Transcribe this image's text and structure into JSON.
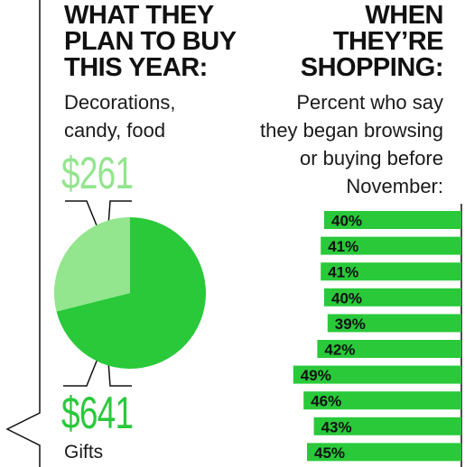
{
  "colors": {
    "accent_green": "#29c93a",
    "light_green": "#93e58e",
    "dark_text": "#111111"
  },
  "left_panel": {
    "heading_lines": [
      "WHAT THEY",
      "PLAN TO BUY",
      "THIS YEAR:"
    ],
    "sub_lines": [
      "Decorations,",
      "candy, food"
    ],
    "decorations_amount": "$261",
    "gifts_amount": "$641",
    "gifts_label": "Gifts"
  },
  "right_panel": {
    "heading_lines": [
      "WHEN",
      "THEY’RE",
      "SHOPPING:"
    ],
    "sub_lines": [
      "Percent who say",
      "they began browsing",
      "or buying before",
      "November:"
    ]
  },
  "chart_data": [
    {
      "type": "pie",
      "slices": [
        {
          "label": "Decorations, candy, food",
          "value": 261,
          "display": "$261",
          "color": "#93e58e"
        },
        {
          "label": "Gifts",
          "value": 641,
          "display": "$641",
          "color": "#29c93a"
        }
      ]
    },
    {
      "type": "bar",
      "orientation": "horizontal",
      "values": [
        40,
        41,
        41,
        40,
        39,
        42,
        49,
        46,
        43,
        45
      ],
      "labels": [
        "40%",
        "41%",
        "41%",
        "40%",
        "39%",
        "42%",
        "49%",
        "46%",
        "43%",
        "45%"
      ],
      "xlim": [
        0,
        50
      ],
      "color": "#29c93a"
    }
  ]
}
